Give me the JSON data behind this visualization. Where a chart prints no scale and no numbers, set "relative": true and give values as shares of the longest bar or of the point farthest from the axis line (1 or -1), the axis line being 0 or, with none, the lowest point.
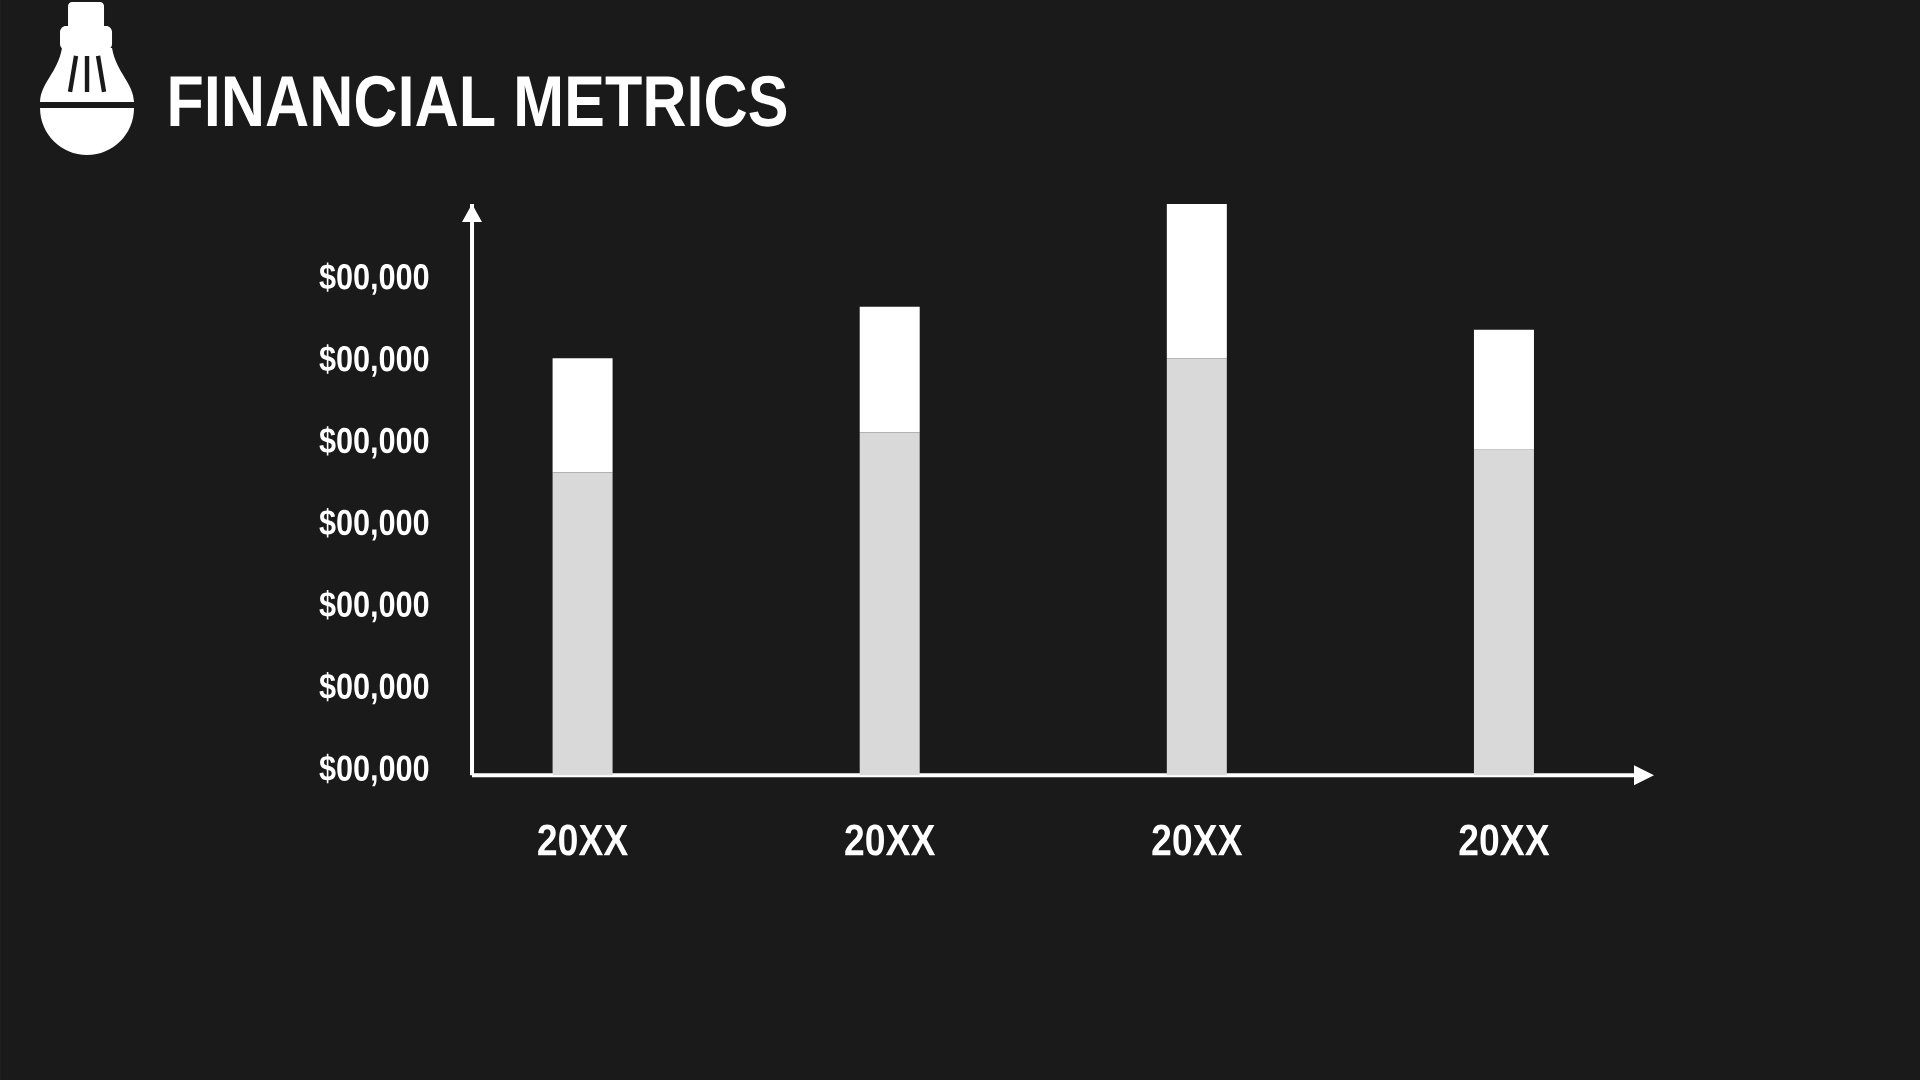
{
  "chart_data": {
    "type": "bar",
    "title": "FINANCIAL METRICS",
    "categories": [
      "20XX",
      "20XX",
      "20XX",
      "20XX"
    ],
    "stacked": true,
    "relative": true,
    "series": [
      {
        "color": "#d9d9d9",
        "values": [
          0.53,
          0.6,
          0.73,
          0.57
        ]
      },
      {
        "color": "#ffffff",
        "values": [
          0.2,
          0.22,
          0.27,
          0.21
        ]
      }
    ],
    "annotations": [
      "$00,000",
      "$00,000",
      "$00,000",
      "$00,000",
      "$00,000",
      "$00,000",
      "$00,000"
    ]
  }
}
